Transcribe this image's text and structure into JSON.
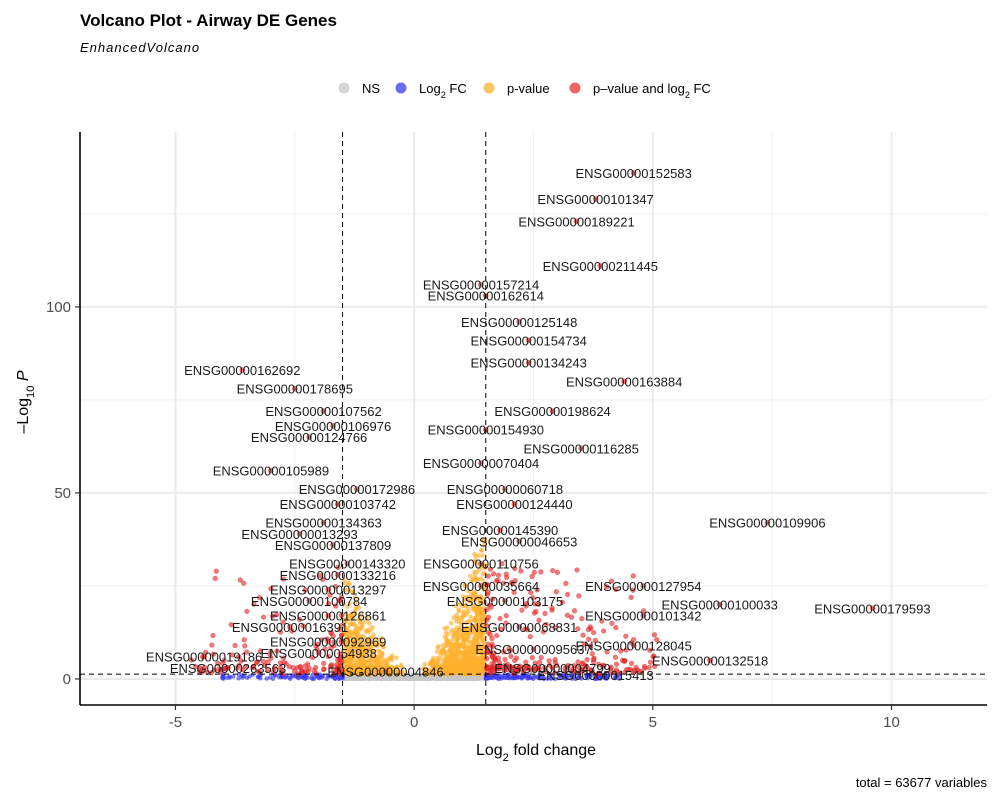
{
  "header": {
    "title": "Volcano Plot - Airway DE Genes",
    "subtitle": "EnhancedVolcano"
  },
  "legend": {
    "placement": "top",
    "items": [
      {
        "key": "ns",
        "prefix": "NS",
        "sub": "",
        "suffix": "",
        "color": "#c8c8c8"
      },
      {
        "key": "fc",
        "prefix": "Log",
        "sub": "2",
        "suffix": " FC",
        "color": "#3a3af0"
      },
      {
        "key": "p",
        "prefix": "p-value",
        "sub": "",
        "suffix": "",
        "color": "#ffb02e"
      },
      {
        "key": "pfc",
        "prefix": "p–value and log",
        "sub": "2",
        "suffix": " FC",
        "color": "#f03030"
      }
    ]
  },
  "caption": "total = 63677 variables",
  "chart_data": {
    "type": "scatter",
    "title": "Volcano Plot - Airway DE Genes",
    "subtitle": "EnhancedVolcano",
    "xlabel": {
      "prefix": "Log",
      "sub": "2",
      "suffix": " fold change"
    },
    "ylabel": {
      "prefix": "–Log",
      "sub": "10",
      "suffix": " P"
    },
    "xlim": [
      -7,
      12
    ],
    "ylim": [
      -7,
      147
    ],
    "x_ticks": [
      -5,
      0,
      5,
      10
    ],
    "y_ticks": [
      0,
      50,
      100
    ],
    "grid": true,
    "fc_cutoff": 1.5,
    "p_cutoff_neglog10": 1.3,
    "labeled_genes": [
      {
        "name": "ENSG00000152583",
        "x": 4.6,
        "y": 136
      },
      {
        "name": "ENSG00000101347",
        "x": 3.8,
        "y": 129
      },
      {
        "name": "ENSG00000189221",
        "x": 3.4,
        "y": 123
      },
      {
        "name": "ENSG00000211445",
        "x": 3.9,
        "y": 111
      },
      {
        "name": "ENSG00000157214",
        "x": 1.4,
        "y": 106
      },
      {
        "name": "ENSG00000162614",
        "x": 1.5,
        "y": 103
      },
      {
        "name": "ENSG00000125148",
        "x": 2.2,
        "y": 96
      },
      {
        "name": "ENSG00000154734",
        "x": 2.4,
        "y": 91
      },
      {
        "name": "ENSG00000134243",
        "x": 2.4,
        "y": 85
      },
      {
        "name": "ENSG00000163884",
        "x": 4.4,
        "y": 80
      },
      {
        "name": "ENSG00000162692",
        "x": -3.6,
        "y": 83
      },
      {
        "name": "ENSG00000178695",
        "x": -2.5,
        "y": 78
      },
      {
        "name": "ENSG00000107562",
        "x": -1.9,
        "y": 72
      },
      {
        "name": "ENSG00000106976",
        "x": -1.7,
        "y": 68
      },
      {
        "name": "ENSG00000124766",
        "x": -2.2,
        "y": 65
      },
      {
        "name": "ENSG00000198624",
        "x": 2.9,
        "y": 72
      },
      {
        "name": "ENSG00000154930",
        "x": 1.5,
        "y": 67
      },
      {
        "name": "ENSG00000116285",
        "x": 3.5,
        "y": 62
      },
      {
        "name": "ENSG00000070404",
        "x": 1.4,
        "y": 58
      },
      {
        "name": "ENSG00000105989",
        "x": -3.0,
        "y": 56
      },
      {
        "name": "ENSG00000172986",
        "x": -1.2,
        "y": 51
      },
      {
        "name": "ENSG00000103742",
        "x": -1.6,
        "y": 47
      },
      {
        "name": "ENSG00000134363",
        "x": -1.9,
        "y": 42
      },
      {
        "name": "ENSG00000013293",
        "x": -2.4,
        "y": 39
      },
      {
        "name": "ENSG00000137809",
        "x": -1.7,
        "y": 36
      },
      {
        "name": "ENSG00000060718",
        "x": 1.9,
        "y": 51
      },
      {
        "name": "ENSG00000124440",
        "x": 2.1,
        "y": 47
      },
      {
        "name": "ENSG00000145390",
        "x": 1.8,
        "y": 40
      },
      {
        "name": "ENSG00000046653",
        "x": 2.2,
        "y": 37
      },
      {
        "name": "ENSG00000109906",
        "x": 7.4,
        "y": 42
      },
      {
        "name": "ENSG00000143320",
        "x": -1.4,
        "y": 31
      },
      {
        "name": "ENSG00000133216",
        "x": -1.6,
        "y": 28
      },
      {
        "name": "ENSG00000013297",
        "x": -1.8,
        "y": 24
      },
      {
        "name": "ENSG00000100784",
        "x": -2.2,
        "y": 21
      },
      {
        "name": "ENSG00000110756",
        "x": 1.4,
        "y": 31
      },
      {
        "name": "ENSG00000127954",
        "x": 4.8,
        "y": 25
      },
      {
        "name": "ENSG00000035664",
        "x": 1.4,
        "y": 25
      },
      {
        "name": "ENSG00000103175",
        "x": 1.9,
        "y": 21
      },
      {
        "name": "ENSG00000100033",
        "x": 6.4,
        "y": 20
      },
      {
        "name": "ENSG00000179593",
        "x": 9.6,
        "y": 19
      },
      {
        "name": "ENSG00000101342",
        "x": 4.8,
        "y": 17
      },
      {
        "name": "ENSG00000126861",
        "x": -1.8,
        "y": 17
      },
      {
        "name": "ENSG00000016391",
        "x": -2.6,
        "y": 14
      },
      {
        "name": "ENSG00000092969",
        "x": -1.8,
        "y": 10
      },
      {
        "name": "ENSG00000019186",
        "x": -4.4,
        "y": 6
      },
      {
        "name": "ENSG00000054938",
        "x": -2.0,
        "y": 7
      },
      {
        "name": "ENSG00000068831",
        "x": 2.2,
        "y": 14
      },
      {
        "name": "ENSG00000128045",
        "x": 4.6,
        "y": 9
      },
      {
        "name": "ENSG00000095637",
        "x": 2.5,
        "y": 8
      },
      {
        "name": "ENSG00000132518",
        "x": 6.2,
        "y": 5
      },
      {
        "name": "ENSG00000263563",
        "x": -3.9,
        "y": 3
      },
      {
        "name": "ENSG00000004846",
        "x": -0.6,
        "y": 2
      },
      {
        "name": "ENSG00000004799",
        "x": 2.9,
        "y": 3
      },
      {
        "name": "ENSG00000015413",
        "x": 3.8,
        "y": 1
      }
    ]
  }
}
